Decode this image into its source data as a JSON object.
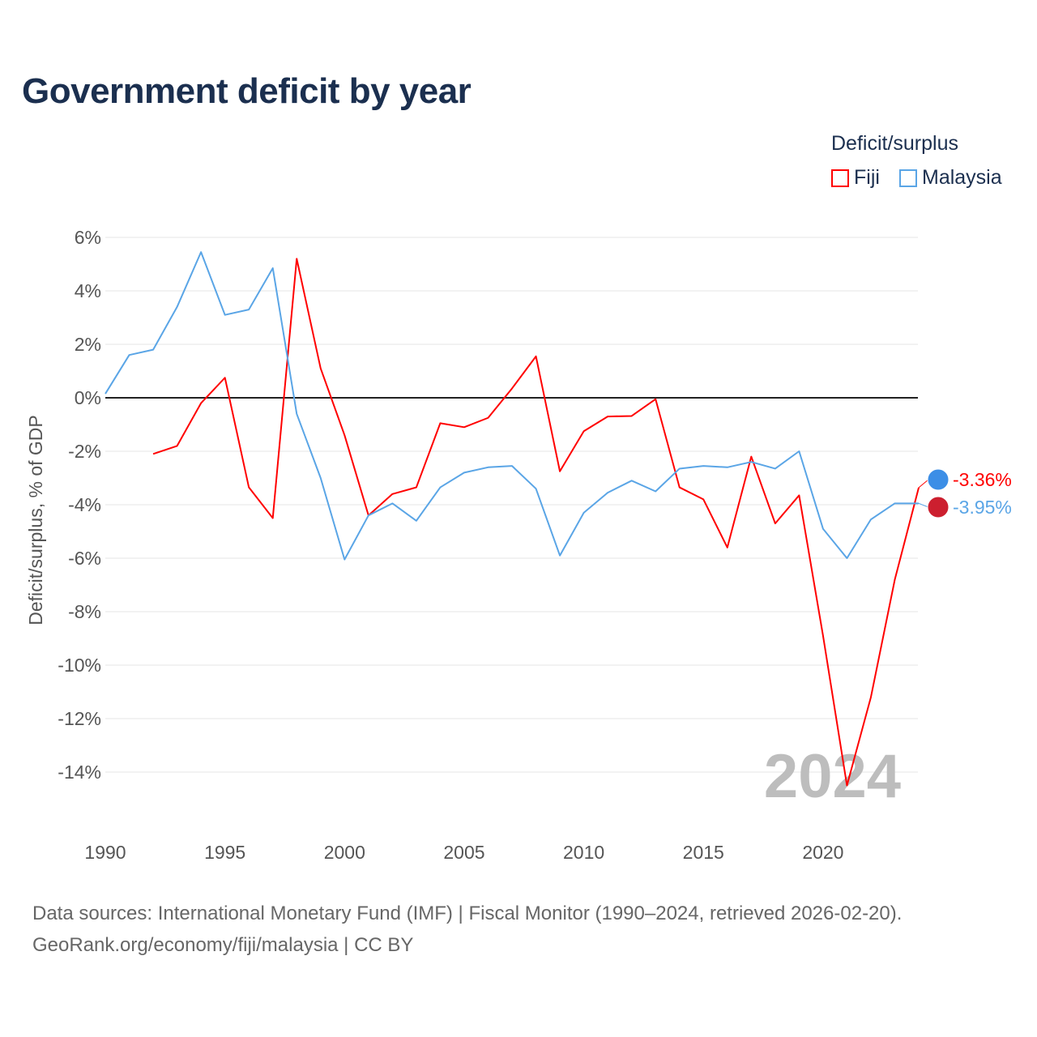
{
  "title": "Government deficit by year",
  "legend": {
    "title": "Deficit/surplus",
    "items": [
      {
        "name": "Fiji",
        "color": "#ff0000"
      },
      {
        "name": "Malaysia",
        "color": "#5aa5e6"
      }
    ]
  },
  "watermark_year": "2024",
  "source": {
    "line1": "Data sources: International Monetary Fund (IMF) | Fiscal Monitor (1990–2024, retrieved 2026-02-20).",
    "line2": "GeoRank.org/economy/fiji/malaysia | CC BY"
  },
  "chart_data": {
    "type": "line",
    "title": "Government deficit by year",
    "xlabel": "",
    "ylabel": "Deficit/surplus, % of GDP",
    "xlim": [
      1990,
      2024
    ],
    "ylim": [
      -16,
      6
    ],
    "x_ticks": [
      1990,
      1995,
      2000,
      2005,
      2010,
      2015,
      2020
    ],
    "y_ticks": [
      6,
      4,
      2,
      0,
      -2,
      -4,
      -6,
      -8,
      -10,
      -12,
      -14
    ],
    "y_tick_labels": [
      "6%",
      "4%",
      "2%",
      "0%",
      "-2%",
      "-4%",
      "-6%",
      "-8%",
      "-10%",
      "-12%",
      "-14%"
    ],
    "grid": true,
    "legend_position": "top-right",
    "series": [
      {
        "name": "Fiji",
        "color": "#ff0000",
        "end_label": "-3.36%",
        "x": [
          1992,
          1993,
          1994,
          1995,
          1996,
          1997,
          1998,
          1999,
          2000,
          2001,
          2002,
          2003,
          2004,
          2005,
          2006,
          2007,
          2008,
          2009,
          2010,
          2011,
          2012,
          2013,
          2014,
          2015,
          2016,
          2017,
          2018,
          2019,
          2020,
          2021,
          2022,
          2023,
          2024
        ],
        "values": [
          -2.1,
          -1.8,
          -0.2,
          0.75,
          -3.35,
          -4.5,
          5.2,
          1.1,
          -1.4,
          -4.4,
          -3.6,
          -3.35,
          -0.95,
          -1.1,
          -0.75,
          0.35,
          1.55,
          -2.75,
          -1.25,
          -0.7,
          -0.68,
          -0.05,
          -3.35,
          -3.8,
          -5.6,
          -2.2,
          -4.7,
          -3.65,
          -8.9,
          -14.5,
          -11.2,
          -6.8,
          -3.36
        ]
      },
      {
        "name": "Malaysia",
        "color": "#5aa5e6",
        "end_label": "-3.95%",
        "x": [
          1990,
          1991,
          1992,
          1993,
          1994,
          1995,
          1996,
          1997,
          1998,
          1999,
          2000,
          2001,
          2002,
          2003,
          2004,
          2005,
          2006,
          2007,
          2008,
          2009,
          2010,
          2011,
          2012,
          2013,
          2014,
          2015,
          2016,
          2017,
          2018,
          2019,
          2020,
          2021,
          2022,
          2023,
          2024
        ],
        "values": [
          0.15,
          1.6,
          1.8,
          3.4,
          5.45,
          3.1,
          3.3,
          4.85,
          -0.6,
          -3.0,
          -6.05,
          -4.4,
          -3.95,
          -4.6,
          -3.35,
          -2.8,
          -2.6,
          -2.55,
          -3.4,
          -5.9,
          -4.3,
          -3.55,
          -3.1,
          -3.5,
          -2.65,
          -2.55,
          -2.6,
          -2.4,
          -2.65,
          -2.0,
          -4.9,
          -6.0,
          -4.55,
          -3.95,
          -3.95
        ]
      }
    ]
  }
}
